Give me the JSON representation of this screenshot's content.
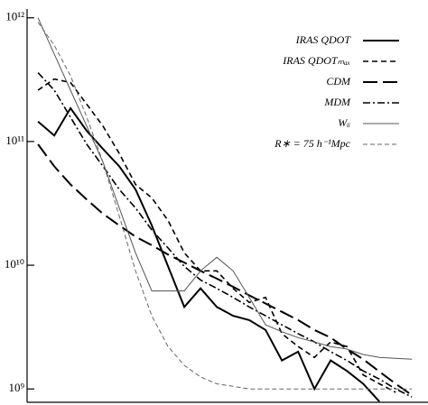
{
  "chart_data": {
    "type": "line",
    "x": [
      0,
      1,
      2,
      3,
      4,
      5,
      6,
      7,
      8,
      9,
      10,
      11,
      12,
      13,
      14,
      15,
      16,
      17,
      18,
      19,
      20,
      21,
      22,
      23
    ],
    "xlim": [
      -0.67,
      23.1
    ],
    "ylim": [
      780000000.0,
      1030000000000.0
    ],
    "log_y": true,
    "yticks": [
      {
        "value": 1000000000.0,
        "label": "10⁹"
      },
      {
        "value": 10000000000.0,
        "label": "10¹⁰"
      },
      {
        "value": 100000000000.0,
        "label": "10¹¹"
      },
      {
        "value": 1000000000000.0,
        "label": "10¹²"
      }
    ],
    "legend": "upper right",
    "series": [
      {
        "name": "IRAS QDOT",
        "color": "#000000",
        "width": 2,
        "dash": "none",
        "values": [
          145000000000.0,
          112000000000.0,
          186000000000.0,
          122000000000.0,
          87000000000.0,
          63000000000.0,
          41000000000.0,
          21000000000.0,
          9800000000.0,
          4600000000.0,
          6500000000.0,
          4600000000.0,
          3900000000.0,
          3600000000.0,
          3000000000.0,
          1700000000.0,
          2000000000.0,
          1000000000.0,
          1700000000.0,
          1400000000.0,
          1100000000.0,
          790000000.0,
          null,
          null
        ]
      },
      {
        "name": "IRAS QDOTₘₐₓ",
        "color": "#000000",
        "width": 1.6,
        "dash": "6,4",
        "values": [
          260000000000.0,
          320000000000.0,
          300000000000.0,
          200000000000.0,
          133000000000.0,
          80000000000.0,
          45000000000.0,
          35000000000.0,
          23000000000.0,
          12600000000.0,
          9000000000.0,
          9000000000.0,
          6500000000.0,
          5000000000.0,
          5500000000.0,
          2800000000.0,
          2200000000.0,
          1800000000.0,
          2400000000.0,
          2200000000.0,
          1300000000.0,
          1100000000.0,
          940000000.0,
          null
        ]
      },
      {
        "name": "CDM",
        "color": "#000000",
        "width": 2,
        "dash": "16,6",
        "values": [
          95000000000.0,
          63000000000.0,
          45000000000.0,
          34000000000.0,
          26000000000.0,
          21000000000.0,
          17000000000.0,
          14500000000.0,
          12200000000.0,
          10500000000.0,
          9000000000.0,
          7800000000.0,
          6700000000.0,
          5700000000.0,
          4900000000.0,
          4200000000.0,
          3600000000.0,
          3000000000.0,
          2600000000.0,
          2100000000.0,
          1740000000.0,
          1380000000.0,
          1100000000.0,
          890000000.0
        ]
      },
      {
        "name": "MDM",
        "color": "#000000",
        "width": 1.6,
        "dash": "8,3,2,3",
        "values": [
          360000000000.0,
          260000000000.0,
          157000000000.0,
          95000000000.0,
          63000000000.0,
          41000000000.0,
          29000000000.0,
          19300000000.0,
          13800000000.0,
          9800000000.0,
          7600000000.0,
          6500000000.0,
          5500000000.0,
          4600000000.0,
          3900000000.0,
          3300000000.0,
          2800000000.0,
          2400000000.0,
          2000000000.0,
          1700000000.0,
          1400000000.0,
          1200000000.0,
          1000000000.0,
          860000000.0
        ]
      },
      {
        "name": "Wᵢᵢ",
        "color": "#555555",
        "width": 1,
        "dash": "none",
        "values": [
          1000000000000.0,
          510000000000.0,
          260000000000.0,
          133000000000.0,
          68000000000.0,
          29000000000.0,
          12600000000.0,
          6200000000.0,
          6200000000.0,
          6200000000.0,
          9000000000.0,
          11600000000.0,
          9000000000.0,
          5500000000.0,
          3300000000.0,
          2900000000.0,
          2600000000.0,
          2400000000.0,
          2200000000.0,
          2100000000.0,
          1900000000.0,
          1800000000.0,
          1770000000.0,
          1740000000.0
        ]
      },
      {
        "name": "R∗ = 75 h⁻¹Mpc",
        "color": "#666666",
        "width": 1,
        "dash": "5,3",
        "values": [
          920000000000.0,
          600000000000.0,
          340000000000.0,
          157000000000.0,
          68000000000.0,
          25000000000.0,
          9000000000.0,
          3900000000.0,
          2200000000.0,
          1550000000.0,
          1250000000.0,
          1100000000.0,
          1050000000.0,
          1000000000.0,
          1000000000.0,
          1000000000.0,
          1000000000.0,
          1000000000.0,
          1000000000.0,
          1000000000.0,
          1000000000.0,
          1000000000.0,
          1000000000.0,
          1000000000.0
        ]
      }
    ]
  }
}
